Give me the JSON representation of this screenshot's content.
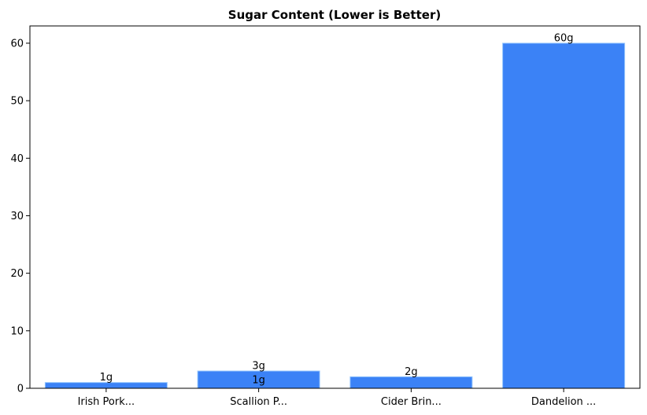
{
  "chart_data": {
    "type": "bar",
    "title": "Sugar Content (Lower is Better)",
    "xlabel": "",
    "ylabel": "",
    "categories": [
      "Irish Pork...",
      "Scallion P...",
      "Cider Brin...",
      "Dandelion ..."
    ],
    "values": [
      1,
      3,
      2,
      60
    ],
    "data_labels": [
      "1g",
      "3g",
      "2g",
      "60g"
    ],
    "extra_labels": [
      {
        "category_index": 1,
        "text": "1g"
      }
    ],
    "ylim": [
      0,
      63
    ],
    "yticks": [
      0,
      10,
      20,
      30,
      40,
      50,
      60
    ],
    "grid": false,
    "bar_color": "#3b82f6",
    "bar_edge_color": "#93c5fd"
  }
}
